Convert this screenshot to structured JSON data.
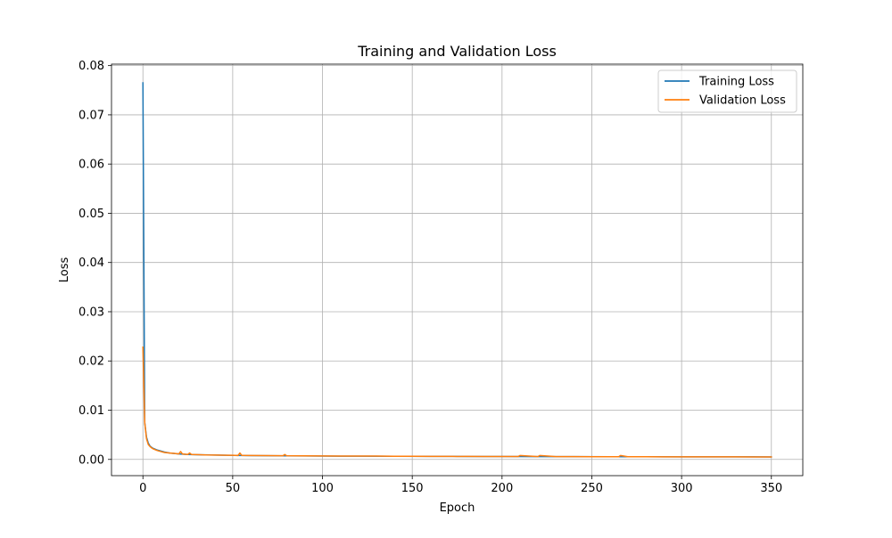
{
  "chart_data": {
    "type": "line",
    "title": "Training and Validation Loss",
    "xlabel": "Epoch",
    "ylabel": "Loss",
    "xlim": [
      -17.5,
      367.5
    ],
    "ylim": [
      -0.0033,
      0.0803
    ],
    "xticks": [
      0,
      50,
      100,
      150,
      200,
      250,
      300,
      350
    ],
    "yticks": [
      0.0,
      0.01,
      0.02,
      0.03,
      0.04,
      0.05,
      0.06,
      0.07,
      0.08
    ],
    "xtick_labels": [
      "0",
      "50",
      "100",
      "150",
      "200",
      "250",
      "300",
      "350"
    ],
    "ytick_labels": [
      "0.00",
      "0.01",
      "0.02",
      "0.03",
      "0.04",
      "0.05",
      "0.06",
      "0.07",
      "0.08"
    ],
    "grid": true,
    "legend_position": "top-right",
    "series": [
      {
        "name": "Training Loss",
        "color": "#1f77b4",
        "x": [
          0,
          1,
          2,
          3,
          4,
          5,
          6,
          8,
          10,
          12,
          15,
          20,
          25,
          30,
          40,
          50,
          60,
          70,
          80,
          90,
          100,
          120,
          140,
          160,
          180,
          200,
          220,
          240,
          260,
          280,
          300,
          320,
          340,
          350
        ],
        "y": [
          0.0765,
          0.0075,
          0.0045,
          0.0033,
          0.0027,
          0.0024,
          0.0022,
          0.0019,
          0.0017,
          0.0015,
          0.0013,
          0.0011,
          0.001,
          0.00095,
          0.00088,
          0.00082,
          0.00078,
          0.00075,
          0.00072,
          0.0007,
          0.00068,
          0.00065,
          0.00063,
          0.00061,
          0.0006,
          0.00058,
          0.00057,
          0.00056,
          0.00055,
          0.00054,
          0.00053,
          0.00052,
          0.00052,
          0.00051
        ]
      },
      {
        "name": "Validation Loss",
        "color": "#ff7f0e",
        "x": [
          0,
          1,
          2,
          3,
          4,
          5,
          6,
          8,
          10,
          12,
          15,
          18,
          20,
          21,
          22,
          25,
          26,
          27,
          30,
          35,
          40,
          50,
          53,
          54,
          55,
          60,
          70,
          78,
          79,
          80,
          90,
          100,
          110,
          120,
          130,
          140,
          150,
          160,
          175,
          180,
          190,
          200,
          209,
          210,
          220,
          221,
          230,
          240,
          250,
          260,
          265,
          266,
          270,
          280,
          290,
          300,
          310,
          320,
          330,
          340,
          350
        ],
        "y": [
          0.0228,
          0.0075,
          0.0042,
          0.003,
          0.0026,
          0.0023,
          0.0021,
          0.0018,
          0.0016,
          0.0014,
          0.0013,
          0.0012,
          0.0011,
          0.0016,
          0.0011,
          0.001,
          0.0013,
          0.001,
          0.00098,
          0.0009,
          0.00088,
          0.00083,
          0.0008,
          0.0013,
          0.00082,
          0.00079,
          0.00076,
          0.00075,
          0.001,
          0.00074,
          0.00072,
          0.0007,
          0.00069,
          0.00067,
          0.00068,
          0.00064,
          0.00063,
          0.00062,
          0.0006,
          0.00061,
          0.0006,
          0.00058,
          0.00058,
          0.0008,
          0.00057,
          0.0008,
          0.00056,
          0.00056,
          0.00055,
          0.00054,
          0.00055,
          0.0008,
          0.00054,
          0.00054,
          0.00053,
          0.00053,
          0.00052,
          0.00052,
          0.00052,
          0.00051,
          0.00051
        ]
      }
    ]
  }
}
